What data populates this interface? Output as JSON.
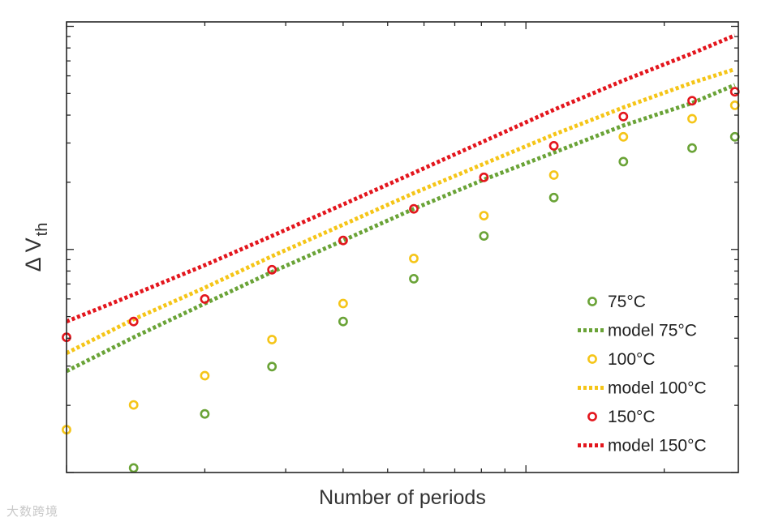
{
  "chart_data": {
    "type": "scatter",
    "title": "",
    "xlabel": "Number of periods",
    "ylabel": "Δ V",
    "ylabel_subscript": "th",
    "xscale": "log",
    "x_ticks_labeled": false,
    "y_ticks_labeled": false,
    "grid": false,
    "legend_position": "bottom-right",
    "x": [
      1,
      1.4,
      2,
      2.8,
      4,
      5.7,
      8.1,
      11.5,
      16.3,
      23,
      28.5
    ],
    "series": [
      {
        "name": "75°C",
        "kind": "markers",
        "color": "#6aa337",
        "values": [
          null,
          0.02,
          0.26,
          0.47,
          0.67,
          0.86,
          1.05,
          1.22,
          1.38,
          1.44,
          1.49
        ]
      },
      {
        "name": "model 75°C",
        "kind": "dotted-line",
        "color": "#6aa337",
        "values": [
          0.45,
          0.6,
          0.75,
          0.89,
          1.03,
          1.17,
          1.3,
          1.42,
          1.54,
          1.64,
          1.72
        ]
      },
      {
        "name": "100°C",
        "kind": "markers",
        "color": "#f5c518",
        "values": [
          0.19,
          0.3,
          0.43,
          0.59,
          0.75,
          0.95,
          1.14,
          1.32,
          1.49,
          1.57,
          1.63
        ]
      },
      {
        "name": "model 100°C",
        "kind": "dotted-line",
        "color": "#f5c518",
        "values": [
          0.53,
          0.68,
          0.82,
          0.96,
          1.1,
          1.24,
          1.37,
          1.5,
          1.62,
          1.73,
          1.79
        ]
      },
      {
        "name": "150°C",
        "kind": "markers",
        "color": "#e3161d",
        "values": [
          0.6,
          0.67,
          0.77,
          0.9,
          1.03,
          1.17,
          1.31,
          1.45,
          1.58,
          1.65,
          1.69
        ]
      },
      {
        "name": "model 150°C",
        "kind": "dotted-line",
        "color": "#e3161d",
        "values": [
          0.67,
          0.79,
          0.92,
          1.05,
          1.19,
          1.33,
          1.47,
          1.61,
          1.74,
          1.86,
          1.94
        ]
      }
    ],
    "xlim": [
      1,
      29
    ],
    "ylim": [
      0,
      2.0
    ]
  },
  "watermark": "大数跨境"
}
